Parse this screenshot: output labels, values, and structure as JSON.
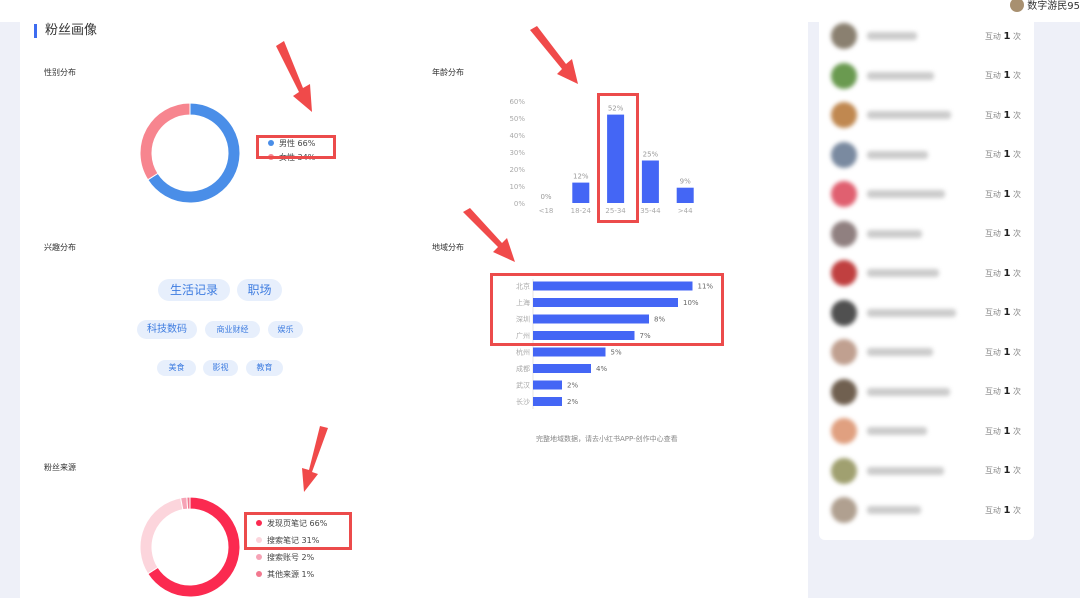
{
  "header": {
    "username": "数字游民95"
  },
  "section_title": "粉丝画像",
  "gender": {
    "title": "性别分布",
    "items": [
      {
        "label": "男性 66%",
        "value": 66,
        "color": "#4a8ee8"
      },
      {
        "label": "女性 34%",
        "value": 34,
        "color": "#f7858f"
      }
    ]
  },
  "interests": {
    "title": "兴趣分布",
    "tags": [
      "生活记录",
      "职场",
      "科技数码",
      "商业财经",
      "娱乐",
      "美食",
      "影视",
      "教育"
    ]
  },
  "source": {
    "title": "粉丝来源",
    "items": [
      {
        "label": "发现页笔记 66%",
        "value": 66,
        "color": "#fb2a50"
      },
      {
        "label": "搜索笔记 31%",
        "value": 31,
        "color": "#fcd5dc"
      },
      {
        "label": "搜索账号 2%",
        "value": 2,
        "color": "#f6a3b6"
      },
      {
        "label": "其他来源 1%",
        "value": 1,
        "color": "#f2788f"
      }
    ]
  },
  "age": {
    "title": "年龄分布"
  },
  "region": {
    "title": "地域分布",
    "note": "完整地域数据，请去小红书APP-创作中心查看"
  },
  "chart_data": [
    {
      "type": "bar",
      "title": "年龄分布",
      "categories": [
        "<18",
        "18-24",
        "25-34",
        "35-44",
        ">44"
      ],
      "values": [
        0,
        12,
        52,
        25,
        9
      ],
      "value_labels": [
        "0%",
        "12%",
        "52%",
        "25%",
        "9%"
      ],
      "yticks": [
        "0%",
        "10%",
        "20%",
        "30%",
        "40%",
        "50%",
        "60%"
      ],
      "ylim": [
        0,
        60
      ],
      "color": "#4466f5"
    },
    {
      "type": "bar",
      "orientation": "horizontal",
      "title": "地域分布",
      "categories": [
        "北京",
        "上海",
        "深圳",
        "广州",
        "杭州",
        "成都",
        "武汉",
        "长沙"
      ],
      "values": [
        11,
        10,
        8,
        7,
        5,
        4,
        2,
        2
      ],
      "value_labels": [
        "11%",
        "10%",
        "8%",
        "7%",
        "5%",
        "4%",
        "2%",
        "2%"
      ],
      "color": "#4466f5"
    }
  ],
  "fans": {
    "count_prefix": "互动",
    "count_suffix": "次",
    "items": [
      {
        "count": "1",
        "avatar": "#8a8070"
      },
      {
        "count": "1",
        "avatar": "#6a9a50"
      },
      {
        "count": "1",
        "avatar": "#c08850"
      },
      {
        "count": "1",
        "avatar": "#7a8aa0"
      },
      {
        "count": "1",
        "avatar": "#e06070"
      },
      {
        "count": "1",
        "avatar": "#908080"
      },
      {
        "count": "1",
        "avatar": "#c04040"
      },
      {
        "count": "1",
        "avatar": "#505050"
      },
      {
        "count": "1",
        "avatar": "#c0a090"
      },
      {
        "count": "1",
        "avatar": "#706050"
      },
      {
        "count": "1",
        "avatar": "#e0a080"
      },
      {
        "count": "1",
        "avatar": "#a0a070"
      },
      {
        "count": "1",
        "avatar": "#b0a090"
      }
    ]
  }
}
